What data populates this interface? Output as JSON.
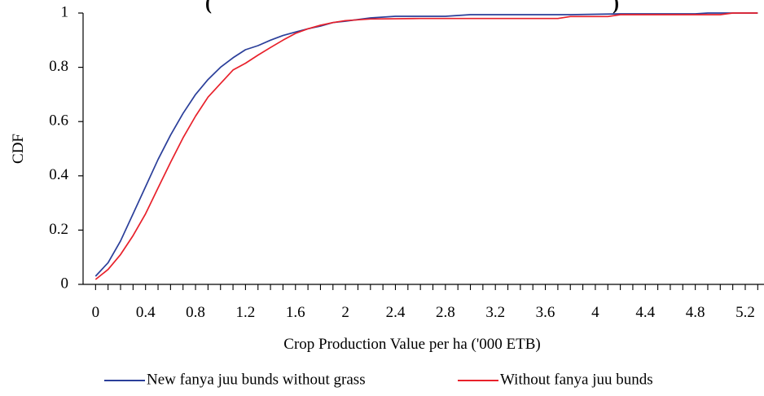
{
  "chart_data": {
    "type": "line",
    "title_visible_fragment": "(",
    "title_visible_fragment_right": ")",
    "xlabel": "Crop Production Value per ha ('000 ETB)",
    "ylabel": "CDF",
    "xlim": [
      -0.1,
      5.35
    ],
    "ylim": [
      0,
      1
    ],
    "x_ticks": [
      "0",
      "0.4",
      "0.8",
      "1.2",
      "1.6",
      "2",
      "2.4",
      "2.8",
      "3.2",
      "3.6",
      "4",
      "4.4",
      "4.8",
      "5.2"
    ],
    "y_ticks": [
      "0",
      "0.2",
      "0.4",
      "0.6",
      "0.8",
      "1"
    ],
    "grid": false,
    "legend_position": "bottom",
    "series": [
      {
        "name": "New fanya juu bunds without grass",
        "color": "#2b3f9a",
        "points": [
          [
            0,
            0.03
          ],
          [
            0.1,
            0.08
          ],
          [
            0.2,
            0.16
          ],
          [
            0.3,
            0.26
          ],
          [
            0.4,
            0.36
          ],
          [
            0.5,
            0.46
          ],
          [
            0.6,
            0.55
          ],
          [
            0.7,
            0.63
          ],
          [
            0.8,
            0.7
          ],
          [
            0.9,
            0.755
          ],
          [
            1.0,
            0.8
          ],
          [
            1.1,
            0.835
          ],
          [
            1.2,
            0.865
          ],
          [
            1.3,
            0.88
          ],
          [
            1.4,
            0.9
          ],
          [
            1.5,
            0.917
          ],
          [
            1.6,
            0.93
          ],
          [
            1.7,
            0.942
          ],
          [
            1.8,
            0.952
          ],
          [
            1.9,
            0.965
          ],
          [
            2.0,
            0.97
          ],
          [
            2.2,
            0.982
          ],
          [
            2.4,
            0.988
          ],
          [
            2.6,
            0.988
          ],
          [
            2.8,
            0.988
          ],
          [
            3.0,
            0.994
          ],
          [
            3.4,
            0.994
          ],
          [
            3.8,
            0.994
          ],
          [
            4.2,
            0.997
          ],
          [
            4.6,
            0.997
          ],
          [
            4.8,
            0.997
          ],
          [
            4.9,
            1.0
          ],
          [
            5.3,
            1.0
          ]
        ]
      },
      {
        "name": "Without fanya juu bunds",
        "color": "#e8212b",
        "points": [
          [
            0,
            0.018
          ],
          [
            0.1,
            0.055
          ],
          [
            0.2,
            0.11
          ],
          [
            0.3,
            0.18
          ],
          [
            0.4,
            0.26
          ],
          [
            0.5,
            0.355
          ],
          [
            0.6,
            0.45
          ],
          [
            0.7,
            0.54
          ],
          [
            0.8,
            0.62
          ],
          [
            0.9,
            0.69
          ],
          [
            1.0,
            0.74
          ],
          [
            1.1,
            0.79
          ],
          [
            1.2,
            0.815
          ],
          [
            1.3,
            0.845
          ],
          [
            1.4,
            0.873
          ],
          [
            1.5,
            0.9
          ],
          [
            1.6,
            0.925
          ],
          [
            1.7,
            0.942
          ],
          [
            1.8,
            0.955
          ],
          [
            1.9,
            0.965
          ],
          [
            2.0,
            0.972
          ],
          [
            2.2,
            0.978
          ],
          [
            2.6,
            0.98
          ],
          [
            3.0,
            0.98
          ],
          [
            3.4,
            0.98
          ],
          [
            3.7,
            0.98
          ],
          [
            3.8,
            0.987
          ],
          [
            4.1,
            0.987
          ],
          [
            4.2,
            0.994
          ],
          [
            4.6,
            0.994
          ],
          [
            5.0,
            0.994
          ],
          [
            5.1,
            1.0
          ],
          [
            5.3,
            1.0
          ]
        ]
      }
    ]
  }
}
